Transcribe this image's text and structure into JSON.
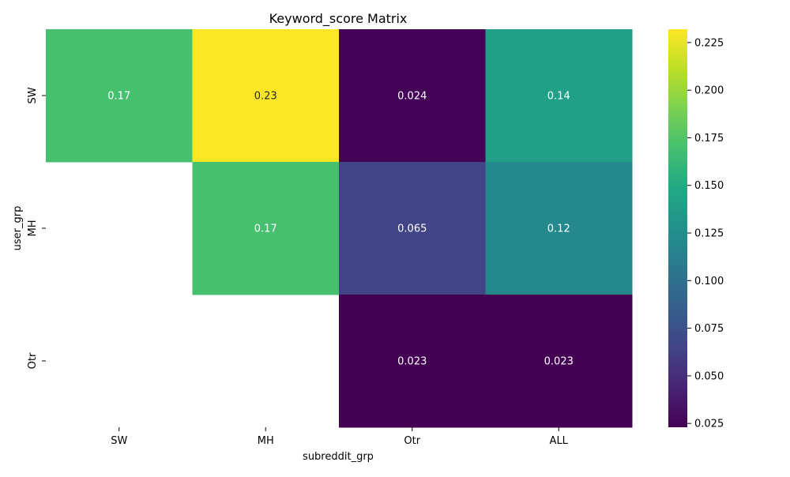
{
  "chart_data": {
    "type": "heatmap",
    "title": "Keyword_score Matrix",
    "xlabel": "subreddit_grp",
    "ylabel": "user_grp",
    "x_categories": [
      "SW",
      "MH",
      "Otr",
      "ALL"
    ],
    "y_categories": [
      "SW",
      "MH",
      "Otr"
    ],
    "values": [
      [
        0.17,
        0.232,
        0.024,
        0.14
      ],
      [
        null,
        0.17,
        0.065,
        0.12
      ],
      [
        null,
        null,
        0.023,
        0.023
      ]
    ],
    "annotations": [
      [
        "0.17",
        "0.23",
        "0.024",
        "0.14"
      ],
      [
        "",
        "0.17",
        "0.065",
        "0.12"
      ],
      [
        "",
        "",
        "0.023",
        "0.023"
      ]
    ],
    "colormap": "viridis",
    "colorbar": {
      "range": [
        0.023,
        0.232
      ],
      "ticks": [
        0.025,
        0.05,
        0.075,
        0.1,
        0.125,
        0.15,
        0.175,
        0.2,
        0.225
      ],
      "tick_labels": [
        "0.025",
        "0.050",
        "0.075",
        "0.100",
        "0.125",
        "0.150",
        "0.175",
        "0.200",
        "0.225"
      ]
    }
  }
}
